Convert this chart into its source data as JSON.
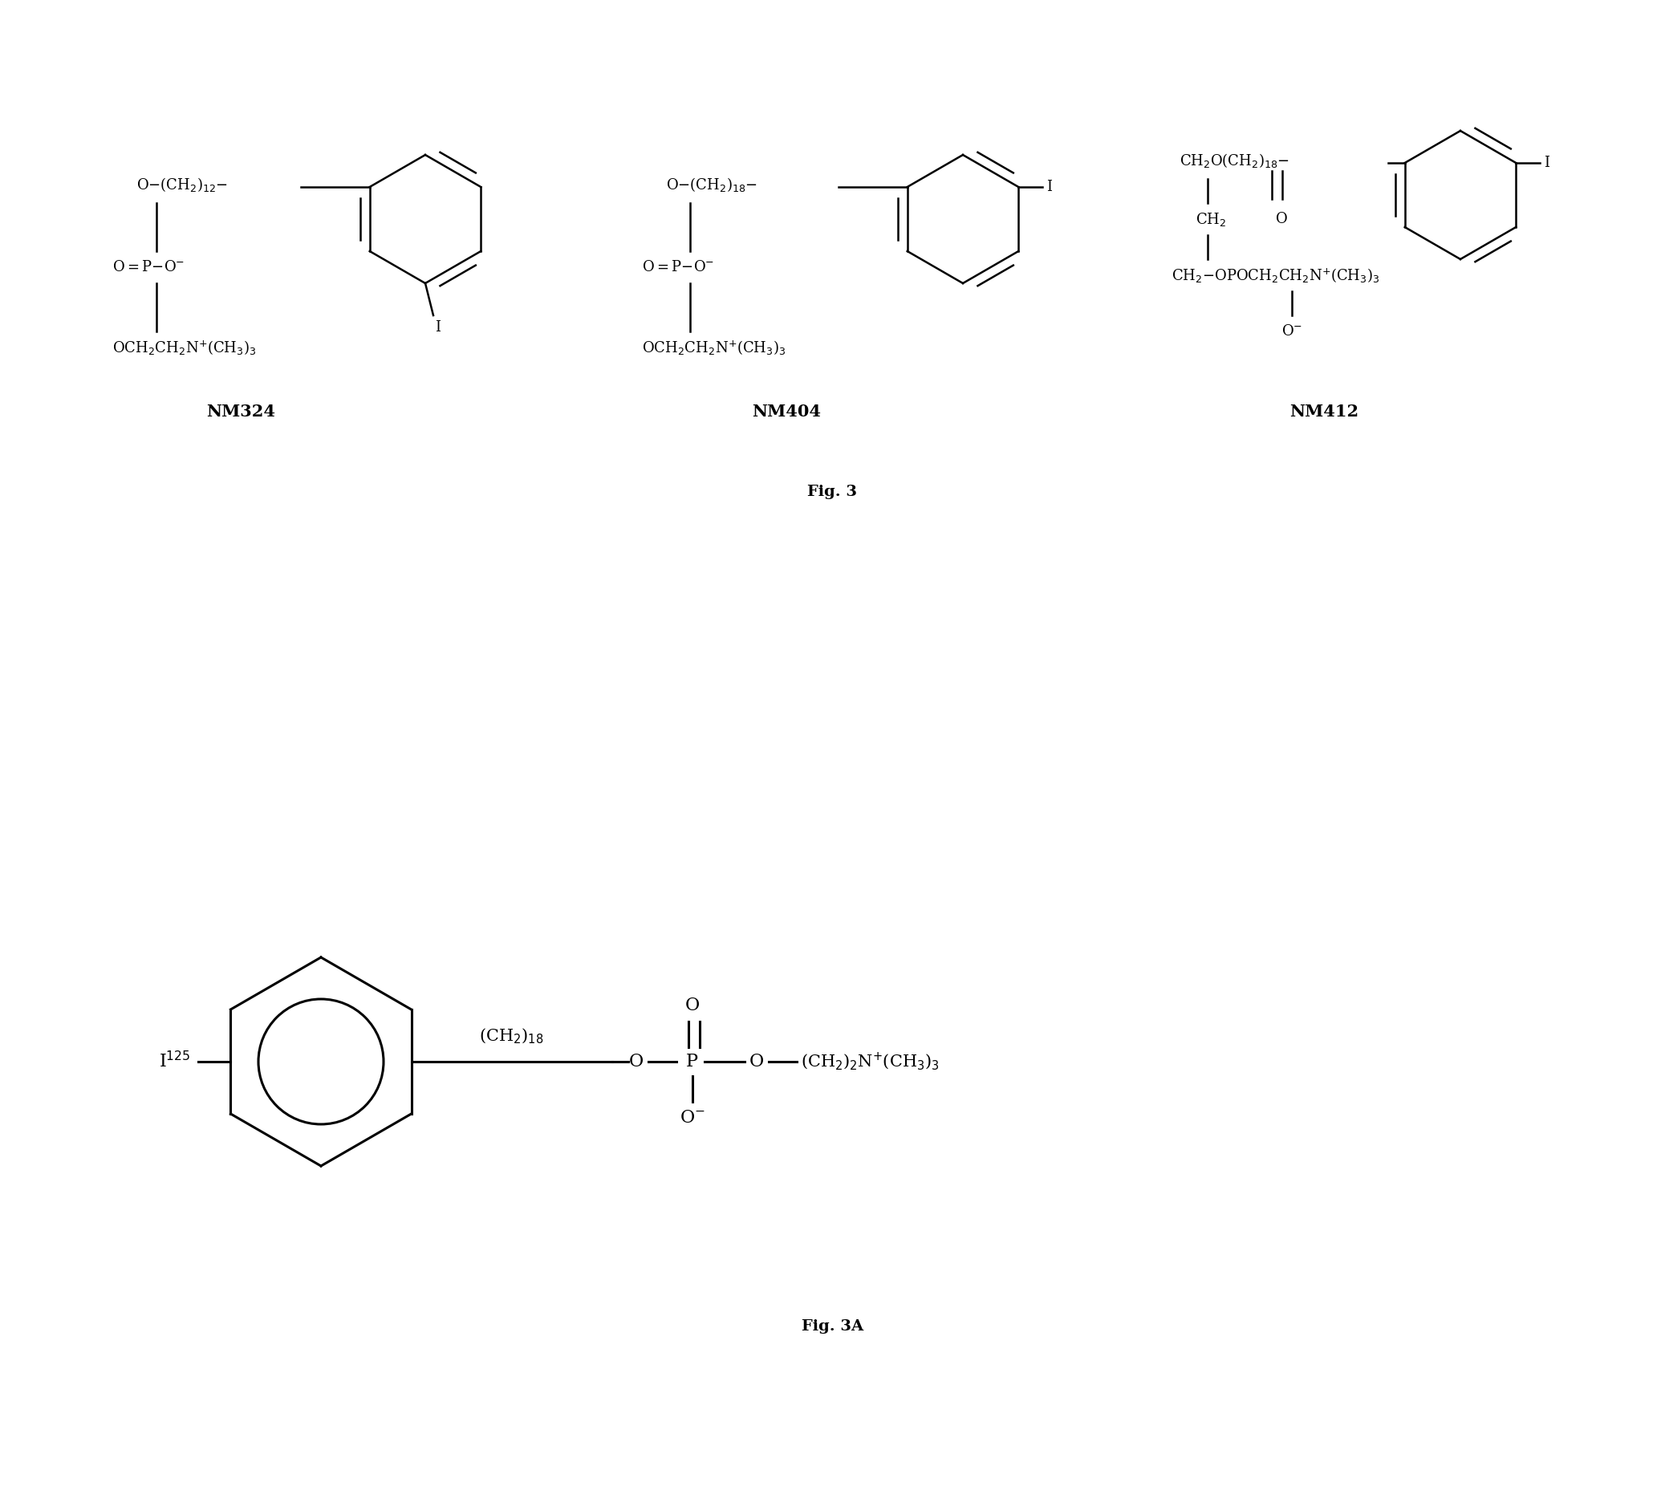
{
  "fig_width": 20.75,
  "fig_height": 18.73,
  "background_color": "#ffffff",
  "fig3_label": "Fig. 3",
  "fig3a_label": "Fig. 3A",
  "nm324_label": "NM324",
  "nm404_label": "NM404",
  "nm412_label": "NM412",
  "lw_thin": 1.8,
  "lw_thick": 2.2,
  "fs_struct": 13,
  "fs_label": 15,
  "fs_fig": 14
}
